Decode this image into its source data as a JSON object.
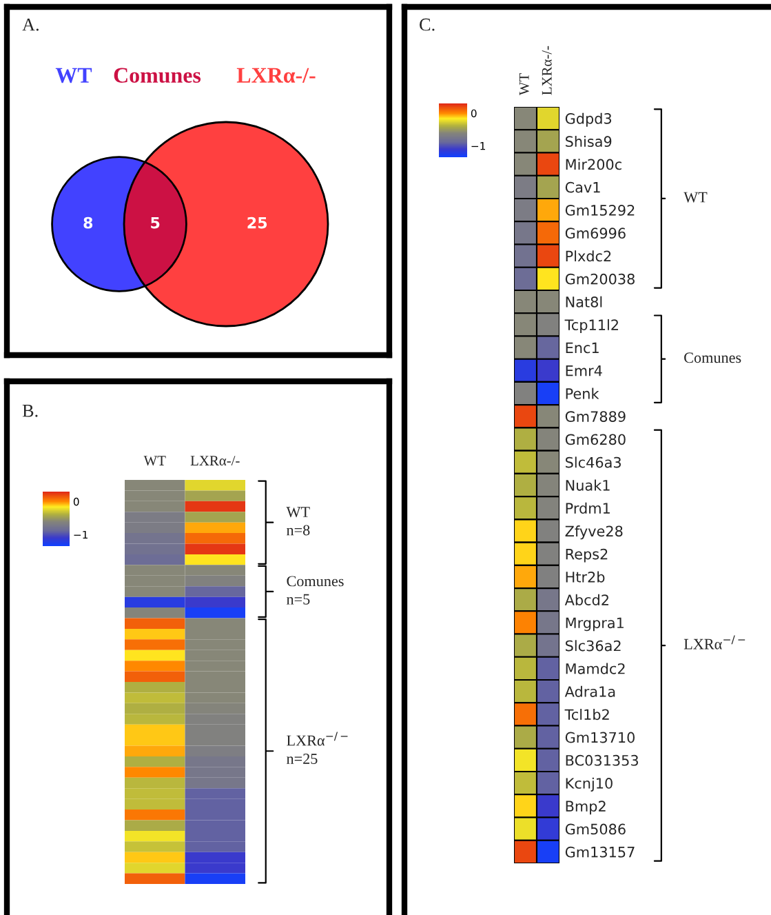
{
  "chart_data": [
    {
      "type": "other",
      "title": "A.",
      "categories": [
        "WT",
        "Comunes",
        "LXRα-/-"
      ],
      "values": [
        8,
        5,
        25
      ],
      "data_labels": true,
      "colors": [
        "#4242ff",
        "#cc1144",
        "#ff4040"
      ]
    },
    {
      "type": "heatmap",
      "title": "C.",
      "categories": [
        "WT",
        "LXRα-/-"
      ],
      "clim": [
        -1.35,
        0.3
      ],
      "cticks": [
        0,
        {
          "value": -1,
          "label": "−1"
        }
      ],
      "y_categories": [
        "Gdpd3",
        "Shisa9",
        "Mir200c",
        "Cav1",
        "Gm15292",
        "Gm6996",
        "Plxdc2",
        "Gm20038",
        "Nat8l",
        "Tcp11l2",
        "Enc1",
        "Emr4",
        "Penk",
        "Gm7889",
        "Gm6280",
        "Slc46a3",
        "Nuak1",
        "Prdm1",
        "Zfyve28",
        "Reps2",
        "Htr2b",
        "Abcd2",
        "Mrgpra1",
        "Slc36a2",
        "Mamdc2",
        "Adra1a",
        "Tcl1b2",
        "Gm13710",
        "BC031353",
        "Kcnj10",
        "Bmp2",
        "Gm5086",
        "Gm13157"
      ],
      "cells": [
        [
          -0.6,
          -0.25
        ],
        [
          -0.6,
          -0.45
        ],
        [
          -0.6,
          0.2
        ],
        [
          -0.7,
          -0.45
        ],
        [
          -0.7,
          -0.05
        ],
        [
          -0.75,
          0.1
        ],
        [
          -0.8,
          0.2
        ],
        [
          -0.85,
          -0.15
        ],
        [
          -0.6,
          -0.6
        ],
        [
          -0.6,
          -0.65
        ],
        [
          -0.6,
          -0.9
        ],
        [
          -1.2,
          -1.1
        ],
        [
          -0.65,
          -1.3
        ],
        [
          0.2,
          -0.6
        ],
        [
          -0.4,
          -0.62
        ],
        [
          -0.35,
          -0.6
        ],
        [
          -0.4,
          -0.62
        ],
        [
          -0.37,
          -0.63
        ],
        [
          -0.12,
          -0.65
        ],
        [
          -0.12,
          -0.65
        ],
        [
          -0.05,
          -0.66
        ],
        [
          -0.42,
          -0.75
        ],
        [
          0.02,
          -0.75
        ],
        [
          -0.42,
          -0.78
        ],
        [
          -0.37,
          -0.92
        ],
        [
          -0.37,
          -0.92
        ],
        [
          0.08,
          -0.92
        ],
        [
          -0.42,
          -0.92
        ],
        [
          -0.2,
          -0.92
        ],
        [
          -0.35,
          -0.92
        ],
        [
          -0.12,
          -1.1
        ],
        [
          -0.22,
          -1.15
        ],
        [
          0.2,
          -1.3
        ]
      ],
      "annotations": [
        "WT",
        "Comunes",
        "LXRα$^{−/−}$"
      ]
    },
    {
      "type": "heatmap",
      "title": "B.",
      "categories": [
        "WT",
        "LXRα-/-"
      ],
      "clim": [
        -1.35,
        0.3
      ],
      "cticks": [
        0,
        {
          "value": -1,
          "label": "−1"
        }
      ],
      "y_categories": [
        null,
        null,
        null,
        null,
        null,
        null,
        null,
        null,
        null,
        null,
        null,
        null,
        null,
        null,
        null,
        null,
        null,
        null,
        null,
        null,
        null,
        null,
        null,
        null,
        null,
        null,
        null,
        null,
        null,
        null,
        null,
        null,
        null,
        null,
        null,
        null,
        null,
        null
      ],
      "cells": [
        [
          -0.6,
          -0.25
        ],
        [
          -0.6,
          -0.45
        ],
        [
          -0.6,
          0.25
        ],
        [
          -0.7,
          -0.45
        ],
        [
          -0.7,
          -0.05
        ],
        [
          -0.78,
          0.1
        ],
        [
          -0.8,
          0.25
        ],
        [
          -0.85,
          -0.15
        ],
        [
          -0.6,
          -0.6
        ],
        [
          -0.6,
          -0.65
        ],
        [
          -0.6,
          -0.9
        ],
        [
          -1.2,
          -1.1
        ],
        [
          -0.62,
          -1.3
        ],
        [
          0.12,
          -0.6
        ],
        [
          -0.1,
          -0.6
        ],
        [
          0.08,
          -0.6
        ],
        [
          -0.15,
          -0.6
        ],
        [
          0.0,
          -0.6
        ],
        [
          0.12,
          -0.6
        ],
        [
          -0.4,
          -0.6
        ],
        [
          -0.35,
          -0.6
        ],
        [
          -0.4,
          -0.62
        ],
        [
          -0.37,
          -0.65
        ],
        [
          -0.1,
          -0.65
        ],
        [
          -0.1,
          -0.65
        ],
        [
          -0.05,
          -0.68
        ],
        [
          -0.4,
          -0.75
        ],
        [
          0.0,
          -0.75
        ],
        [
          -0.37,
          -0.75
        ],
        [
          -0.35,
          -0.92
        ],
        [
          -0.35,
          -0.92
        ],
        [
          0.05,
          -0.92
        ],
        [
          -0.42,
          -0.92
        ],
        [
          -0.2,
          -0.92
        ],
        [
          -0.33,
          -0.92
        ],
        [
          -0.1,
          -1.1
        ],
        [
          -0.25,
          -1.1
        ],
        [
          0.12,
          -1.3
        ]
      ],
      "annotations": [
        "WT\nn=8",
        "Comunes\nn=5",
        "LXRα$^{−/−}$\nn=25"
      ]
    }
  ]
}
